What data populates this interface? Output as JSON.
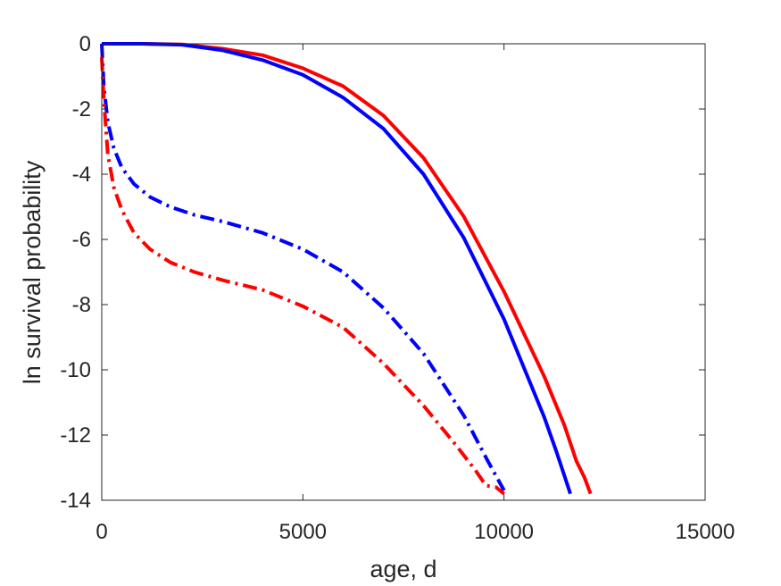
{
  "chart_data": {
    "type": "line",
    "title": "",
    "xlabel": "age, d",
    "ylabel": "ln survival probability",
    "xlim": [
      0,
      15000
    ],
    "ylim": [
      -14,
      0
    ],
    "xticks": [
      0,
      5000,
      10000,
      15000
    ],
    "yticks": [
      0,
      -2,
      -4,
      -6,
      -8,
      -10,
      -12,
      -14
    ],
    "xtick_labels": [
      "0",
      "5000",
      "10000",
      "15000"
    ],
    "ytick_labels": [
      "0",
      "-2",
      "-4",
      "-6",
      "-8",
      "-10",
      "-12",
      "-14"
    ],
    "grid": false,
    "legend": "none",
    "series": [
      {
        "color": "#ff0000",
        "style": "solid",
        "x": [
          0,
          1000,
          2000,
          3000,
          4000,
          5000,
          6000,
          7000,
          8000,
          9000,
          10000,
          11000,
          11500,
          11800,
          12000,
          12150
        ],
        "y": [
          0,
          0,
          -0.02,
          -0.15,
          -0.35,
          -0.75,
          -1.3,
          -2.2,
          -3.5,
          -5.3,
          -7.6,
          -10.2,
          -11.7,
          -12.8,
          -13.3,
          -13.8
        ]
      },
      {
        "color": "#0000ff",
        "style": "solid",
        "x": [
          0,
          1000,
          2000,
          3000,
          4000,
          5000,
          6000,
          7000,
          8000,
          9000,
          10000,
          11000,
          11300,
          11650
        ],
        "y": [
          0,
          0,
          -0.03,
          -0.2,
          -0.5,
          -0.95,
          -1.65,
          -2.6,
          -4.0,
          -5.95,
          -8.45,
          -11.45,
          -12.5,
          -13.8
        ]
      },
      {
        "color": "#0000ff",
        "style": "dash-dot",
        "x": [
          0,
          50,
          150,
          300,
          500,
          800,
          1200,
          1700,
          2300,
          3000,
          4000,
          5000,
          6000,
          7000,
          8000,
          9000,
          9600,
          10000
        ],
        "y": [
          0,
          -1.3,
          -2.4,
          -3.2,
          -3.8,
          -4.3,
          -4.7,
          -5.0,
          -5.25,
          -5.45,
          -5.8,
          -6.3,
          -7.0,
          -8.1,
          -9.5,
          -11.4,
          -12.8,
          -13.7
        ]
      },
      {
        "color": "#ff0000",
        "style": "dash-dot",
        "x": [
          0,
          50,
          150,
          300,
          500,
          800,
          1200,
          1700,
          2300,
          3000,
          4000,
          5000,
          6000,
          7000,
          8000,
          8800,
          9300,
          9550,
          9800,
          10000
        ],
        "y": [
          -0.4,
          -1.7,
          -3.4,
          -4.4,
          -5.1,
          -5.8,
          -6.3,
          -6.7,
          -7.0,
          -7.25,
          -7.55,
          -8.05,
          -8.7,
          -9.8,
          -11.1,
          -12.3,
          -13.1,
          -13.55,
          -13.6,
          -13.8
        ]
      }
    ]
  }
}
